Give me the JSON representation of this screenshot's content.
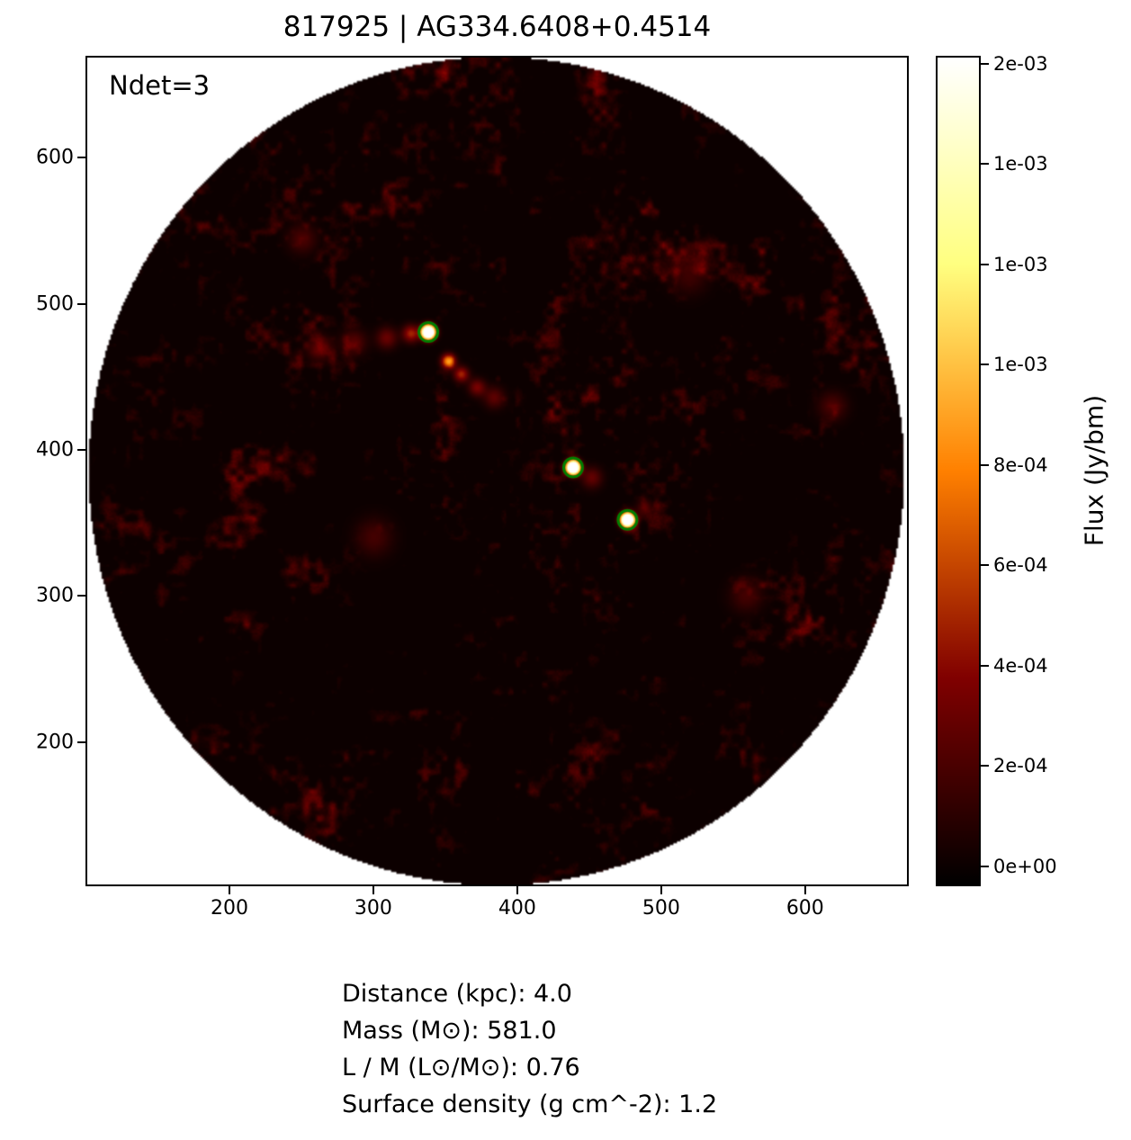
{
  "chart_data": {
    "type": "heatmap",
    "title": "817925 | AG334.6408+0.4514",
    "annotation": "Ndet=3",
    "x_ticks": [
      "200",
      "300",
      "400",
      "500",
      "600"
    ],
    "y_ticks": [
      "200",
      "300",
      "400",
      "500",
      "600"
    ],
    "xlim": [
      100,
      672
    ],
    "ylim": [
      101.5,
      669.6
    ],
    "field": {
      "center": [
        385.5,
        385.5
      ],
      "radius": 284.5,
      "background": "#ffffff"
    },
    "colormap": {
      "name": "afmhot",
      "stops": [
        [
          0,
          "#000000"
        ],
        [
          0.25,
          "#800000"
        ],
        [
          0.5,
          "#ff8000"
        ],
        [
          0.75,
          "#ffff80"
        ],
        [
          1,
          "#ffffff"
        ]
      ]
    },
    "colorbar": {
      "label": "Flux (Jy/bm)",
      "vmin": -4e-05,
      "vmax": 0.001616,
      "ticks": [
        {
          "value": 0.0016,
          "label": "2e-03"
        },
        {
          "value": 0.0014,
          "label": "1e-03"
        },
        {
          "value": 0.0012,
          "label": "1e-03"
        },
        {
          "value": 0.001,
          "label": "1e-03"
        },
        {
          "value": 0.0008,
          "label": "8e-04"
        },
        {
          "value": 0.0006,
          "label": "6e-04"
        },
        {
          "value": 0.0004,
          "label": "4e-04"
        },
        {
          "value": 0.0002,
          "label": "2e-04"
        },
        {
          "value": 0.0,
          "label": "0e+00"
        }
      ]
    },
    "detections": [
      {
        "x": 338,
        "y": 481
      },
      {
        "x": 439,
        "y": 388
      },
      {
        "x": 477,
        "y": 352
      }
    ],
    "detection_marker": {
      "color": "#008000",
      "radius_px": 10.5,
      "stroke_px": 3
    },
    "bright_features": [
      [
        262,
        470,
        0.00026,
        6
      ],
      [
        286,
        474,
        0.00024,
        6
      ],
      [
        309,
        477,
        0.0003,
        5
      ],
      [
        326,
        480,
        0.0005,
        4
      ],
      [
        352,
        461,
        0.0009,
        3.2
      ],
      [
        361,
        452,
        0.0005,
        3.5
      ],
      [
        372,
        443,
        0.00035,
        4
      ],
      [
        384,
        436,
        0.00026,
        5
      ],
      [
        452,
        381,
        0.00028,
        5
      ],
      [
        489,
        360,
        0.00022,
        4
      ],
      [
        560,
        300,
        0.00018,
        8
      ],
      [
        300,
        340,
        0.00018,
        9
      ],
      [
        250,
        545,
        0.0002,
        7
      ],
      [
        520,
        520,
        0.00016,
        9
      ],
      [
        620,
        430,
        0.0002,
        7
      ]
    ],
    "noise": {
      "seed": 20240817,
      "threshold": 0.52,
      "scale": 0.00052,
      "power": 1.6
    }
  },
  "footer": {
    "lines": [
      "Distance (kpc): 4.0",
      "Mass (M⊙): 581.0",
      "L / M (L⊙/M⊙): 0.76",
      "Surface density (g cm^-2): 1.2"
    ]
  }
}
